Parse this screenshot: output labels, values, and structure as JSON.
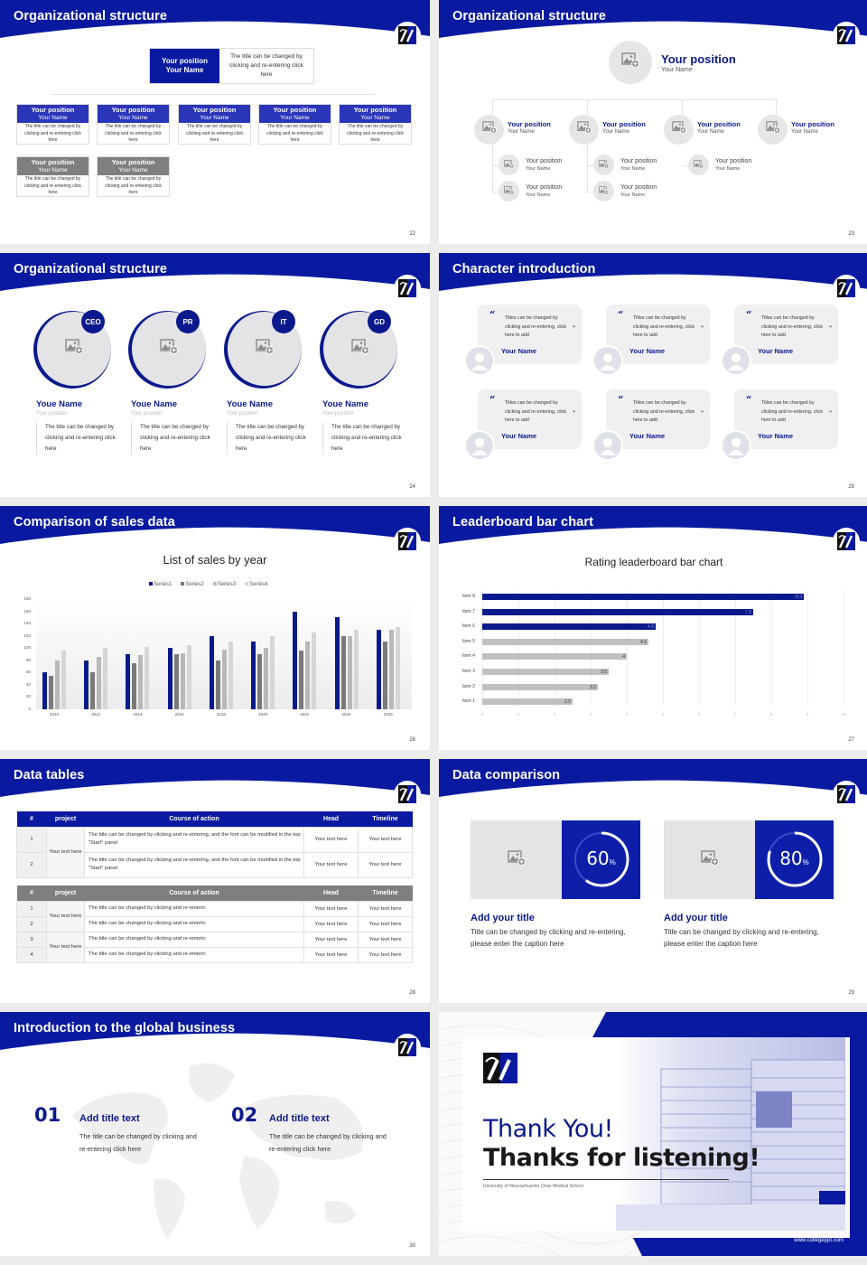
{
  "colors": {
    "brand_blue": "#0a1aa0",
    "dark_blue": "#0a1a8c",
    "gray_header": "#7f7f7f",
    "light_gray": "#e4e3e6"
  },
  "slides": {
    "s22": {
      "title": "Organizational structure",
      "page": "22",
      "top": {
        "position": "Your position",
        "name": "Your Name",
        "desc": "The title can be changed by clicking and re-entering click here"
      },
      "cards": [
        {
          "position": "Your position",
          "name": "Your Name",
          "desc": "The title can be changed by clicking and re-entering click here",
          "tone": "blue"
        },
        {
          "position": "Your position",
          "name": "Your Name",
          "desc": "The title can be changed by clicking and re-entering click here",
          "tone": "blue"
        },
        {
          "position": "Your position",
          "name": "Your Name",
          "desc": "The title can be changed by clicking and re-entering click here",
          "tone": "blue"
        },
        {
          "position": "Your position",
          "name": "Your Name",
          "desc": "The title can be changed by clicking and re-entering click here",
          "tone": "blue"
        },
        {
          "position": "Your position",
          "name": "Your Name",
          "desc": "The title can be changed by clicking and re-entering click here",
          "tone": "blue"
        },
        {
          "position": "Your position",
          "name": "Your Name",
          "desc": "The title can be changed by clicking and re-entering click here",
          "tone": "gray"
        },
        {
          "position": "Your position",
          "name": "Your Name",
          "desc": "The title can be changed by clicking and re-entering click here",
          "tone": "gray"
        }
      ]
    },
    "s23": {
      "title": "Organizational structure",
      "page": "23",
      "top": {
        "position": "Your position",
        "name": "Your Name"
      },
      "level2": [
        {
          "position": "Your position",
          "name": "Your Name"
        },
        {
          "position": "Your position",
          "name": "Your Name"
        },
        {
          "position": "Your position",
          "name": "Your Name"
        },
        {
          "position": "Your position",
          "name": "Your Name"
        }
      ],
      "level3": [
        {
          "position": "Your position",
          "name": "Your Name"
        },
        {
          "position": "Your position",
          "name": "Your Name"
        },
        {
          "position": "Your position",
          "name": "Your Name"
        },
        {
          "position": "Your position",
          "name": "Your Name"
        },
        {
          "position": "Your position",
          "name": "Your Name"
        }
      ]
    },
    "s24": {
      "title": "Organizational structure",
      "page": "24",
      "people": [
        {
          "badge": "CEO",
          "name": "Youe Name",
          "position": "Your position",
          "desc": "The title can be changed by clicking and re-entering click here"
        },
        {
          "badge": "PR",
          "name": "Youe Name",
          "position": "Your position",
          "desc": "The title can be changed by clicking and re-entering click here"
        },
        {
          "badge": "IT",
          "name": "Youe Name",
          "position": "Your position",
          "desc": "The title can be changed by clicking and re-entering click here"
        },
        {
          "badge": "GD",
          "name": "Youe Name",
          "position": "Your position",
          "desc": "The title can be changed by clicking and re-entering click here"
        }
      ]
    },
    "s25": {
      "title": "Character introduction",
      "page": "25",
      "open_quote": "“",
      "close_quote": "”",
      "cards": [
        {
          "text": "Titles can be changed by clicking and re-entering, click here to add",
          "name": "Your Name"
        },
        {
          "text": "Titles can be changed by clicking and re-entering, click here to add",
          "name": "Your Name"
        },
        {
          "text": "Titles can be changed by clicking and re-entering, click here to add",
          "name": "Your Name"
        },
        {
          "text": "Titles can be changed by clicking and re-entering, click here to add",
          "name": "Your Name"
        },
        {
          "text": "Titles can be changed by clicking and re-entering, click here to add",
          "name": "Your Name"
        },
        {
          "text": "Titles can be changed by clicking and re-entering, click here to add",
          "name": "Your Name"
        }
      ]
    },
    "s26": {
      "title": "Comparison of sales data",
      "page": "26"
    },
    "s27": {
      "title": "Leaderboard bar chart",
      "page": "27"
    },
    "s28": {
      "title": "Data tables",
      "page": "28",
      "headers": [
        "#",
        "project",
        "Course of action",
        "Head",
        "Timeline"
      ],
      "table1": {
        "project": "Your text here",
        "rows": [
          {
            "num": "1",
            "action": "The title can be changed by clicking and re-entering, and the font can be modified in the top \"Start\" panel",
            "head": "Your text here",
            "timeline": "Your text here"
          },
          {
            "num": "2",
            "action": "The title can be changed by clicking and re-entering, and the font can be modified in the top \"Start\" panel",
            "head": "Your text here",
            "timeline": "Your text here"
          }
        ]
      },
      "table2": {
        "projects": [
          "Your text here",
          "Your text here"
        ],
        "rows": [
          {
            "num": "1",
            "action": "The title can be changed by clicking and re-enterin",
            "head": "Your text here",
            "timeline": "Your text here"
          },
          {
            "num": "2",
            "action": "The title can be changed by clicking and re-enterin",
            "head": "Your text here",
            "timeline": "Your text here"
          },
          {
            "num": "3",
            "action": "The title can be changed by clicking and re-enterin",
            "head": "Your text here",
            "timeline": "Your text here"
          },
          {
            "num": "4",
            "action": "The title can be changed by clicking and re-enterin",
            "head": "Your text here",
            "timeline": "Your text here"
          }
        ]
      }
    },
    "s29": {
      "title": "Data comparison",
      "page": "29",
      "items": [
        {
          "value": "60",
          "unit": "%",
          "percent": 60,
          "title": "Add your title",
          "desc": "Title can be changed by clicking and re-entering, please enter the caption here"
        },
        {
          "value": "80",
          "unit": "%",
          "percent": 80,
          "title": "Add your title",
          "desc": "Title can be changed by clicking and re-entering, please enter the caption here"
        }
      ]
    },
    "s30": {
      "title": "Introduction to the global business",
      "page": "30",
      "items": [
        {
          "num": "01",
          "title": "Add title text",
          "desc": "The title can be changed by clicking and re-entering click here"
        },
        {
          "num": "02",
          "title": "Add title text",
          "desc": "The title can be changed by clicking and re-entering click here"
        }
      ]
    },
    "s31": {
      "thank_you": "Thank You!",
      "thanks_listening": "Thanks for listening!",
      "subtitle": "University of Massachusetts Chan Medical School",
      "website": "www.collegeppt.com"
    }
  },
  "chart_data": [
    {
      "type": "bar",
      "title": "List of sales by year",
      "categories": [
        "2010",
        "2012",
        "2014",
        "2016",
        "2018",
        "2020",
        "2022",
        "2024",
        "2026"
      ],
      "series": [
        {
          "name": "Series1",
          "color": "#0a1a8c",
          "values": [
            60,
            80,
            90,
            100,
            120,
            110,
            160,
            150,
            130
          ]
        },
        {
          "name": "Series2",
          "color": "#7a7a7a",
          "values": [
            55,
            60,
            75,
            90,
            80,
            90,
            96,
            120,
            110
          ]
        },
        {
          "name": "Series3",
          "color": "#b8b8b8",
          "values": [
            80,
            86,
            88,
            92,
            98,
            100,
            110,
            120,
            130
          ]
        },
        {
          "name": "Series4",
          "color": "#d6d6d6",
          "values": [
            96,
            100,
            102,
            105,
            110,
            120,
            126,
            130,
            135
          ]
        }
      ],
      "yticks": [
        0,
        20,
        40,
        60,
        80,
        100,
        120,
        140,
        160,
        180
      ],
      "ylim": [
        0,
        180
      ],
      "legend_position": "top",
      "xlabel": "",
      "ylabel": ""
    },
    {
      "type": "bar",
      "orientation": "horizontal",
      "title": "Rating leaderboard bar chart",
      "categories": [
        "Item 8",
        "Item 7",
        "Item 6",
        "Item 5",
        "Item 4",
        "Item 3",
        "Item 2",
        "Item 1"
      ],
      "values": [
        8.9,
        7.5,
        4.8,
        4.6,
        4,
        3.5,
        3.2,
        2.5
      ],
      "labels": [
        "8.9",
        "7.5",
        "4.8",
        "4.6",
        "4",
        "3.5",
        "3.2",
        "2.5"
      ],
      "highlight_color": "#0a1a8c",
      "base_color": "#c0c0c0",
      "xticks": [
        0,
        1,
        2,
        3,
        4,
        5,
        6,
        7,
        8,
        9,
        10
      ],
      "xlim": [
        0,
        10
      ],
      "xlabel": "",
      "ylabel": ""
    }
  ]
}
